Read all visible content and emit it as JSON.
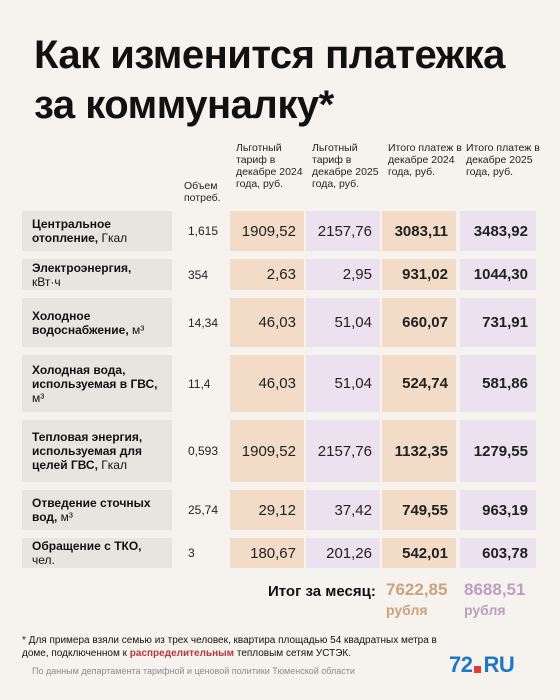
{
  "title": "Как изменится платежка за коммуналку*",
  "columns": {
    "volume": "Объем потреб.",
    "tariff_2024": "Льготный тариф в декабре 2024 года, руб.",
    "tariff_2025": "Льготный тариф в декабре 2025 года, руб.",
    "total_2024": "Итого платеж в декабре 2024 года, руб.",
    "total_2025": "Итого платеж в декабре 2025 года, руб."
  },
  "rows": [
    {
      "label": "Центральное отопление,",
      "unit": " Гкал",
      "volume": "1,615",
      "t24": "1909,52",
      "t25": "2157,76",
      "p24": "3083,11",
      "p25": "3483,92"
    },
    {
      "label": "Электроэнергия,",
      "unit": " кВт·ч",
      "volume": "354",
      "t24": "2,63",
      "t25": "2,95",
      "p24": "931,02",
      "p25": "1044,30"
    },
    {
      "label": "Холодное водоснабжение,",
      "unit": " м³",
      "volume": "14,34",
      "t24": "46,03",
      "t25": "51,04",
      "p24": "660,07",
      "p25": "731,91"
    },
    {
      "label": "Холодная вода, используемая в ГВС,",
      "unit": " м³",
      "volume": "11,4",
      "t24": "46,03",
      "t25": "51,04",
      "p24": "524,74",
      "p25": "581,86"
    },
    {
      "label": "Тепловая энергия, используемая для целей ГВС,",
      "unit": " Гкал",
      "volume": "0,593",
      "t24": "1909,52",
      "t25": "2157,76",
      "p24": "1132,35",
      "p25": "1279,55"
    },
    {
      "label": "Отведение сточных вод,",
      "unit": " м³",
      "volume": "25,74",
      "t24": "29,12",
      "t25": "37,42",
      "p24": "749,55",
      "p25": "963,19"
    },
    {
      "label": "Обращение с ТКО,",
      "unit": " чел.",
      "volume": "3",
      "t24": "180,67",
      "t25": "201,26",
      "p24": "542,01",
      "p25": "603,78"
    }
  ],
  "totals": {
    "label": "Итог за месяц:",
    "v2024": "7622,85",
    "v2025": "8688,51",
    "unit": "рубля"
  },
  "footnote": {
    "before": "* Для примера взяли семью из трех человек, квартира площадью 54 квадратных метра в доме, подключенном к ",
    "highlight": "распределительным",
    "after": " тепловым сетям УСТЭК."
  },
  "source": "По данным департамента тарифной и ценовой политики Тюменской области",
  "logo": {
    "num": "72",
    "ru": "RU"
  },
  "colors": {
    "tariff_2024": "#f2dcc7",
    "tariff_2025": "#ece1ee",
    "total_2024_text": "#c9a27e",
    "total_2025_text": "#b9a0c0",
    "highlight": "#b5373c",
    "logo_blue": "#1d78c4",
    "logo_red": "#e13a3a"
  }
}
